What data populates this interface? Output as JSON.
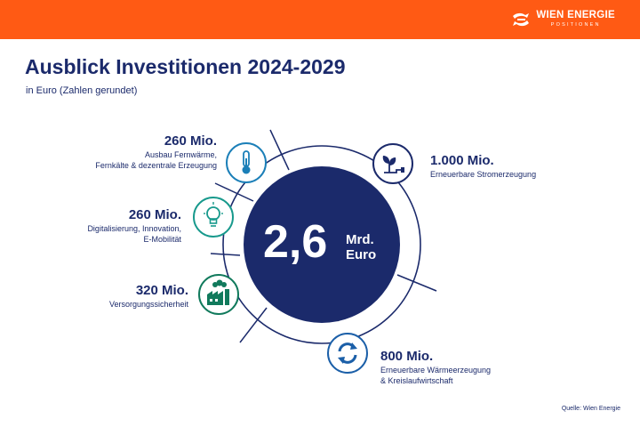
{
  "brand": {
    "name": "WIEN ENERGIE",
    "subtitle": "POSITIONEN",
    "logo_icon": "wien-energie-logo",
    "header_color": "#ff5a14"
  },
  "title": "Ausblick Investitionen 2024-2029",
  "subtitle": "in Euro (Zahlen gerundet)",
  "center": {
    "value": "2,6",
    "unit_line1": "Mrd.",
    "unit_line2": "Euro",
    "color": "#1b2a6b"
  },
  "items": [
    {
      "amount": "260 Mio.",
      "label_lines": [
        "Ausbau Fernwärme,",
        "Fernkälte & dezentrale Erzeugung"
      ],
      "icon": "thermometer-icon",
      "color": "#1b7fb8"
    },
    {
      "amount": "260 Mio.",
      "label_lines": [
        "Digitalisierung, Innovation,",
        "E-Mobilität"
      ],
      "icon": "lightbulb-icon",
      "color": "#17998c"
    },
    {
      "amount": "320 Mio.",
      "label_lines": [
        "Versorgungssicherheit"
      ],
      "icon": "power-plant-icon",
      "color": "#117a5c"
    },
    {
      "amount": "1.000 Mio.",
      "label_lines": [
        "Erneuerbare Stromerzeugung"
      ],
      "icon": "plant-plug-icon",
      "color": "#1b2a6b"
    },
    {
      "amount": "800 Mio.",
      "label_lines": [
        "Erneuerbare Wärmeerzeugung",
        "& Kreislaufwirtschaft"
      ],
      "icon": "recycle-arrows-icon",
      "color": "#1b5fa8"
    }
  ],
  "source": "Quelle: Wien Energie"
}
